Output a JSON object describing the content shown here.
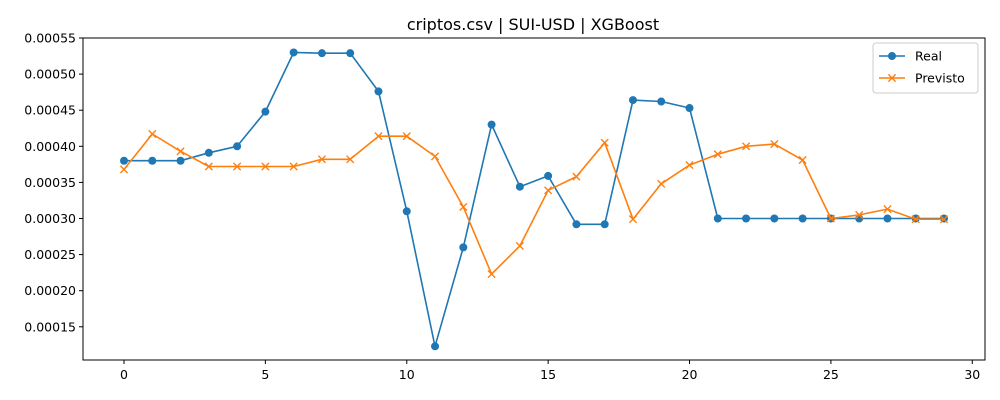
{
  "chart_data": {
    "type": "line",
    "title": "criptos.csv | SUI-USD | XGBoost",
    "xlabel": "",
    "ylabel": "",
    "xlim": [
      -1.45,
      30.45
    ],
    "ylim": [
      0.000104,
      0.00055
    ],
    "x_ticks": [
      0,
      5,
      10,
      15,
      20,
      25,
      30
    ],
    "x_tick_labels": [
      "0",
      "5",
      "10",
      "15",
      "20",
      "25",
      "30"
    ],
    "y_ticks": [
      0.00015,
      0.0002,
      0.00025,
      0.0003,
      0.00035,
      0.0004,
      0.00045,
      0.0005,
      0.00055
    ],
    "y_tick_labels": [
      "0.00015",
      "0.00020",
      "0.00025",
      "0.00030",
      "0.00035",
      "0.00040",
      "0.00045",
      "0.00050",
      "0.00055"
    ],
    "grid": false,
    "legend_position": "top-right",
    "x": [
      0,
      1,
      2,
      3,
      4,
      5,
      6,
      7,
      8,
      9,
      10,
      11,
      12,
      13,
      14,
      15,
      16,
      17,
      18,
      19,
      20,
      21,
      22,
      23,
      24,
      25,
      26,
      27,
      28,
      29
    ],
    "series": [
      {
        "name": "Real",
        "color": "#1f77b4",
        "marker": "circle",
        "values": [
          0.00038,
          0.00038,
          0.00038,
          0.000391,
          0.0004,
          0.000448,
          0.00053,
          0.000529,
          0.000529,
          0.000476,
          0.00031,
          0.000123,
          0.00026,
          0.00043,
          0.000344,
          0.000359,
          0.000292,
          0.000292,
          0.000464,
          0.000462,
          0.000453,
          0.0003,
          0.0003,
          0.0003,
          0.0003,
          0.0003,
          0.0003,
          0.0003,
          0.0003,
          0.0003
        ]
      },
      {
        "name": "Previsto",
        "color": "#ff7f0e",
        "marker": "x",
        "values": [
          0.000368,
          0.000417,
          0.000393,
          0.000372,
          0.000372,
          0.000372,
          0.000372,
          0.000382,
          0.000382,
          0.000414,
          0.000414,
          0.000386,
          0.000316,
          0.000223,
          0.000262,
          0.000339,
          0.000358,
          0.000405,
          0.000299,
          0.000348,
          0.000374,
          0.000389,
          0.0004,
          0.000403,
          0.000381,
          0.0003,
          0.000305,
          0.000313,
          0.000299,
          0.000299
        ]
      }
    ]
  }
}
